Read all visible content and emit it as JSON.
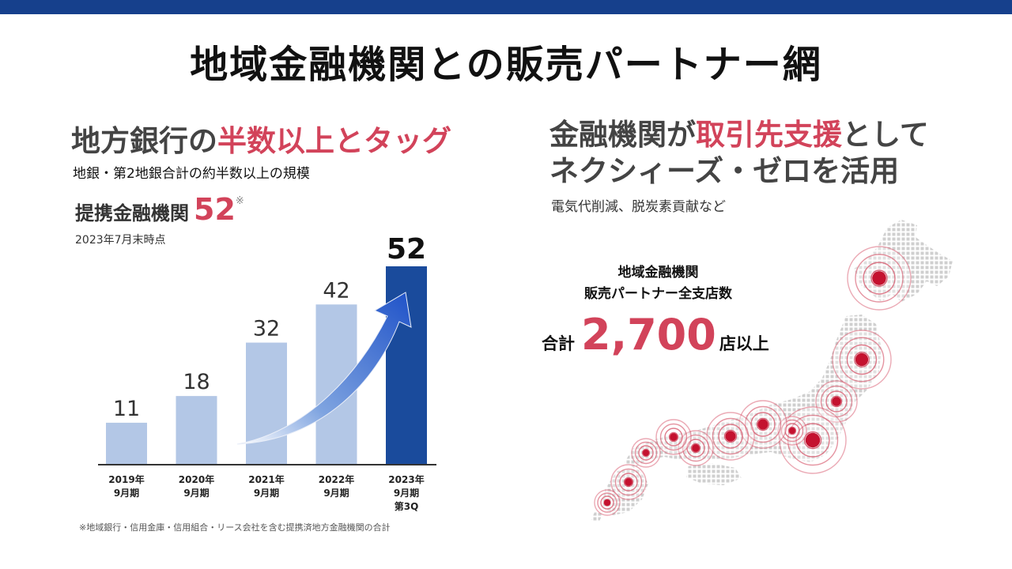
{
  "page": {
    "title": "地域金融機関との販売パートナー網"
  },
  "left": {
    "heading_plain": "地方銀行の",
    "heading_highlight": "半数以上とタッグ",
    "subheading": "地銀・第2地銀合計の約半数以上の規模",
    "partner_label": "提携金融機関",
    "partner_value": "52",
    "partner_mark": "※",
    "as_of": "2023年7月末時点",
    "footnote": "※地域銀行・信用金庫・信用組合・リース会社を含む提携済地方金融機関の合計"
  },
  "right": {
    "heading_line1_plain_a": "金融機関が",
    "heading_line1_highlight": "取引先支援",
    "heading_line1_plain_b": "として",
    "heading_line2": "ネクシィーズ・ゼロを活用",
    "subheading": "電気代削減、脱炭素貢献など",
    "branch_caption_line1": "地域金融機関",
    "branch_caption_line2": "販売パートナー全支店数",
    "total_label": "合計",
    "total_value": "2,700",
    "total_suffix": "店以上"
  },
  "colors": {
    "accent": "#d2435a",
    "bar_light": "#b3c7e6",
    "bar_dark": "#1a4b9c",
    "topbar": "#16408c"
  },
  "chart_data": {
    "type": "bar",
    "categories": [
      [
        "2019年",
        "9月期"
      ],
      [
        "2020年",
        "9月期"
      ],
      [
        "2021年",
        "9月期"
      ],
      [
        "2022年",
        "9月期"
      ],
      [
        "2023年",
        "9月期",
        "第3Q"
      ]
    ],
    "values": [
      11,
      18,
      32,
      42,
      52
    ],
    "data_labels": [
      "11",
      "18",
      "32",
      "42",
      "52"
    ],
    "ylim": [
      0,
      52
    ],
    "highlight_index": 4,
    "xlabel": "",
    "ylabel": "",
    "grid": false,
    "legend": "none",
    "annotation": "upward-trend-arrow"
  }
}
